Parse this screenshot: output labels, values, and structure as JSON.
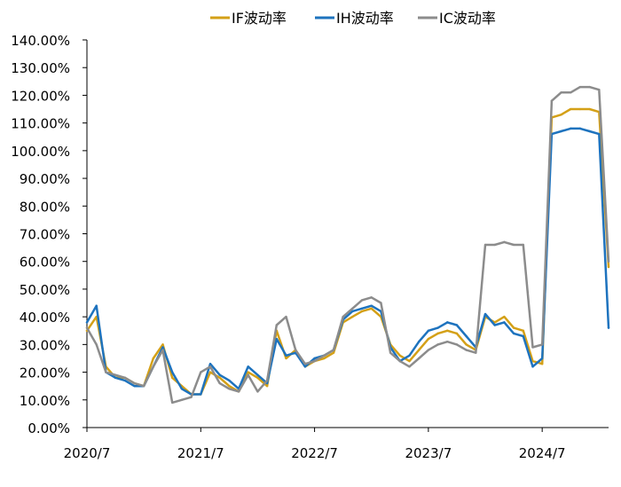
{
  "chart_data": {
    "type": "line",
    "title": "",
    "xlabel": "",
    "ylabel": "",
    "ylim": [
      0,
      140
    ],
    "y_unit": "%",
    "y_ticks": [
      "0.00%",
      "10.00%",
      "20.00%",
      "30.00%",
      "40.00%",
      "50.00%",
      "60.00%",
      "70.00%",
      "80.00%",
      "90.00%",
      "100.00%",
      "110.00%",
      "120.00%",
      "130.00%",
      "140.00%"
    ],
    "x_ticks": [
      "2020/7",
      "2021/7",
      "2022/7",
      "2023/7",
      "2024/7"
    ],
    "x_range": [
      "2020-07",
      "2025-02"
    ],
    "x": [
      "2020-07",
      "2020-08",
      "2020-09",
      "2020-10",
      "2020-11",
      "2020-12",
      "2021-01",
      "2021-02",
      "2021-03",
      "2021-04",
      "2021-05",
      "2021-06",
      "2021-07",
      "2021-08",
      "2021-09",
      "2021-10",
      "2021-11",
      "2021-12",
      "2022-01",
      "2022-02",
      "2022-03",
      "2022-04",
      "2022-05",
      "2022-06",
      "2022-07",
      "2022-08",
      "2022-09",
      "2022-10",
      "2022-11",
      "2022-12",
      "2023-01",
      "2023-02",
      "2023-03",
      "2023-04",
      "2023-05",
      "2023-06",
      "2023-07",
      "2023-08",
      "2023-09",
      "2023-10",
      "2023-11",
      "2023-12",
      "2024-01",
      "2024-02",
      "2024-03",
      "2024-04",
      "2024-05",
      "2024-06",
      "2024-07",
      "2024-08",
      "2024-09",
      "2024-10",
      "2024-11",
      "2024-12",
      "2025-01",
      "2025-02"
    ],
    "series": [
      {
        "name": "IF波动率",
        "color": "#D4A017",
        "values": [
          35,
          40,
          22,
          18,
          18,
          16,
          15,
          25,
          30,
          18,
          15,
          12,
          12,
          20,
          18,
          15,
          13,
          20,
          18,
          15,
          35,
          25,
          28,
          22,
          24,
          25,
          27,
          38,
          40,
          42,
          43,
          40,
          30,
          26,
          24,
          28,
          32,
          34,
          35,
          34,
          30,
          28,
          40,
          38,
          40,
          36,
          35,
          24,
          23,
          112,
          113,
          115,
          115,
          115,
          114,
          58
        ]
      },
      {
        "name": "IH波动率",
        "color": "#1E73BE",
        "values": [
          38,
          44,
          20,
          18,
          17,
          15,
          15,
          22,
          29,
          20,
          14,
          12,
          12,
          23,
          19,
          17,
          14,
          22,
          19,
          16,
          32,
          26,
          27,
          22,
          25,
          26,
          28,
          39,
          42,
          43,
          44,
          42,
          29,
          24,
          26,
          31,
          35,
          36,
          38,
          37,
          33,
          29,
          41,
          37,
          38,
          34,
          33,
          22,
          25,
          106,
          107,
          108,
          108,
          107,
          106,
          36
        ]
      },
      {
        "name": "IC波动率",
        "color": "#8C8C8C",
        "values": [
          36,
          30,
          20,
          19,
          18,
          16,
          15,
          22,
          28,
          9,
          10,
          11,
          20,
          22,
          16,
          14,
          13,
          19,
          13,
          17,
          37,
          40,
          28,
          23,
          24,
          26,
          28,
          40,
          43,
          46,
          47,
          45,
          27,
          24,
          22,
          25,
          28,
          30,
          31,
          30,
          28,
          27,
          66,
          66,
          67,
          66,
          66,
          29,
          30,
          118,
          121,
          121,
          123,
          123,
          122,
          60
        ]
      }
    ],
    "legend": "top-center",
    "grid": false
  }
}
